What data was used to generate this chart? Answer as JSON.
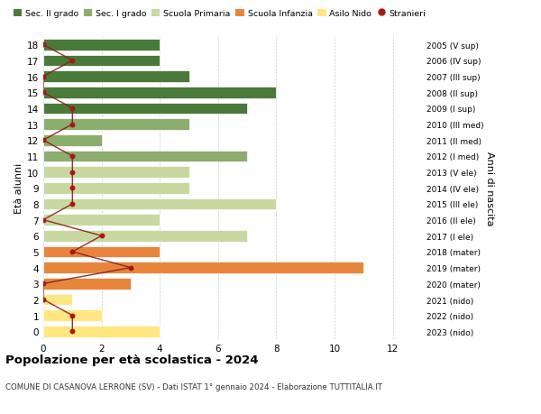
{
  "ages": [
    0,
    1,
    2,
    3,
    4,
    5,
    6,
    7,
    8,
    9,
    10,
    11,
    12,
    13,
    14,
    15,
    16,
    17,
    18
  ],
  "right_labels": [
    "2023 (nido)",
    "2022 (nido)",
    "2021 (nido)",
    "2020 (mater)",
    "2019 (mater)",
    "2018 (mater)",
    "2017 (I ele)",
    "2016 (II ele)",
    "2015 (III ele)",
    "2014 (IV ele)",
    "2013 (V ele)",
    "2012 (I med)",
    "2011 (II med)",
    "2010 (III med)",
    "2009 (I sup)",
    "2008 (II sup)",
    "2007 (III sup)",
    "2006 (IV sup)",
    "2005 (V sup)"
  ],
  "bar_values": [
    4,
    2,
    1,
    3,
    11,
    4,
    7,
    4,
    8,
    5,
    5,
    7,
    2,
    5,
    7,
    8,
    5,
    4,
    4
  ],
  "bar_colors": [
    "#FFE680",
    "#FFE680",
    "#FFE680",
    "#E8853D",
    "#E8853D",
    "#E8853D",
    "#C8D8A0",
    "#C8D8A0",
    "#C8D8A0",
    "#C8D8A0",
    "#C8D8A0",
    "#8BAD6E",
    "#8BAD6E",
    "#8BAD6E",
    "#4A7A3A",
    "#4A7A3A",
    "#4A7A3A",
    "#4A7A3A",
    "#4A7A3A"
  ],
  "stranieri_values": [
    1,
    1,
    0,
    0,
    3,
    1,
    2,
    0,
    1,
    1,
    1,
    1,
    0,
    1,
    1,
    0,
    0,
    1,
    0
  ],
  "legend_labels": [
    "Sec. II grado",
    "Sec. I grado",
    "Scuola Primaria",
    "Scuola Infanzia",
    "Asilo Nido",
    "Stranieri"
  ],
  "legend_colors": [
    "#4A7A3A",
    "#8BAD6E",
    "#C8D8A0",
    "#E8853D",
    "#FFE680",
    "#AA2222"
  ],
  "title": "Popolazione per età scolastica - 2024",
  "subtitle": "COMUNE DI CASANOVA LERRONE (SV) - Dati ISTAT 1° gennaio 2024 - Elaborazione TUTTITALIA.IT",
  "ylabel_left": "Età alunni",
  "ylabel_right": "Anni di nascita",
  "xlim": [
    0,
    13
  ],
  "background_color": "#FFFFFF"
}
